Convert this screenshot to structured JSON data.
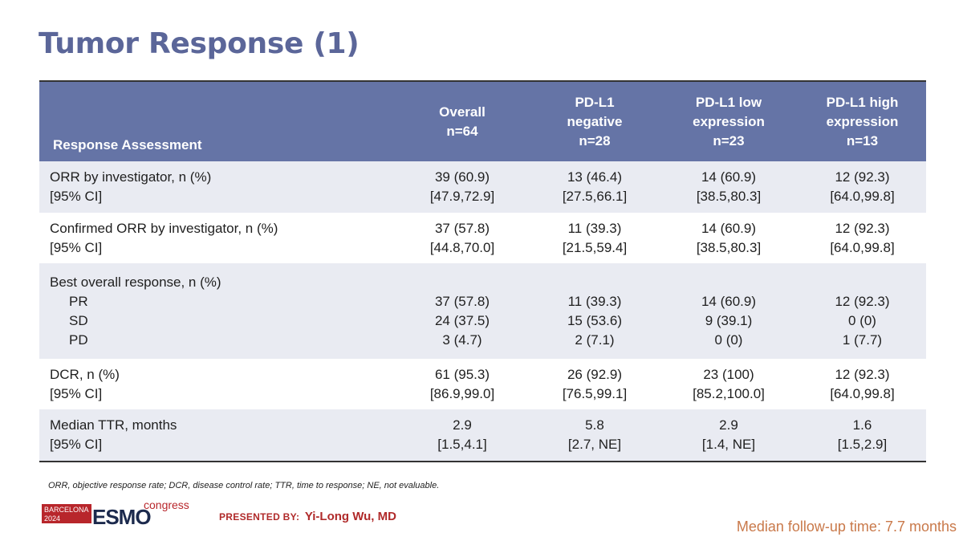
{
  "title": "Tumor Response (1)",
  "table": {
    "headers": [
      {
        "lines": [
          "Response Assessment"
        ]
      },
      {
        "lines": [
          "Overall",
          "n=64"
        ]
      },
      {
        "lines": [
          "PD-L1",
          "negative",
          "n=28"
        ]
      },
      {
        "lines": [
          "PD-L1 low",
          "expression",
          "n=23"
        ]
      },
      {
        "lines": [
          "PD-L1 high",
          "expression",
          "n=13"
        ]
      }
    ],
    "rows": [
      {
        "label": [
          "ORR by investigator, n (%)",
          "[95% CI]"
        ],
        "cells": [
          [
            "39 (60.9)",
            "[47.9,72.9]"
          ],
          [
            "13 (46.4)",
            "[27.5,66.1]"
          ],
          [
            "14 (60.9)",
            "[38.5,80.3]"
          ],
          [
            "12 (92.3)",
            "[64.0,99.8]"
          ]
        ]
      },
      {
        "label": [
          "Confirmed ORR by investigator, n (%)",
          "[95% CI]"
        ],
        "cells": [
          [
            "37 (57.8)",
            "[44.8,70.0]"
          ],
          [
            "11 (39.3)",
            "[21.5,59.4]"
          ],
          [
            "14 (60.9)",
            "[38.5,80.3]"
          ],
          [
            "12 (92.3)",
            "[64.0,99.8]"
          ]
        ]
      },
      {
        "label": [
          "Best overall response, n (%)",
          "PR",
          "SD",
          "PD"
        ],
        "cells": [
          [
            "",
            "37 (57.8)",
            "24 (37.5)",
            "3 (4.7)"
          ],
          [
            "",
            "11 (39.3)",
            "15 (53.6)",
            "2 (7.1)"
          ],
          [
            "",
            "14 (60.9)",
            "9 (39.1)",
            "0 (0)"
          ],
          [
            "",
            "12 (92.3)",
            "0 (0)",
            "1 (7.7)"
          ]
        ]
      },
      {
        "label": [
          "DCR, n (%)",
          "[95% CI]"
        ],
        "cells": [
          [
            "61 (95.3)",
            "[86.9,99.0]"
          ],
          [
            "26 (92.9)",
            "[76.5,99.1]"
          ],
          [
            "23 (100)",
            "[85.2,100.0]"
          ],
          [
            "12 (92.3)",
            "[64.0,99.8]"
          ]
        ]
      },
      {
        "label": [
          "Median TTR, months",
          "[95% CI]"
        ],
        "cells": [
          [
            "2.9",
            "[1.5,4.1]"
          ],
          [
            "5.8",
            "[2.7, NE]"
          ],
          [
            "2.9",
            "[1.4, NE]"
          ],
          [
            "1.6",
            "[1.5,2.9]"
          ]
        ]
      }
    ]
  },
  "footnote": "ORR, objective response rate; DCR, disease control rate; TTR, time to response; NE, not evaluable.",
  "logo": {
    "city": "BARCELONA",
    "year": "2024",
    "brand": "ESMO",
    "suffix": "congress",
    "colors": {
      "red": "#b8262b",
      "dark": "#1c2a4d"
    }
  },
  "presenter": {
    "label": "PRESENTED BY:",
    "name": "Yi-Long Wu, MD"
  },
  "followup": "Median follow-up time: 7.7 months"
}
